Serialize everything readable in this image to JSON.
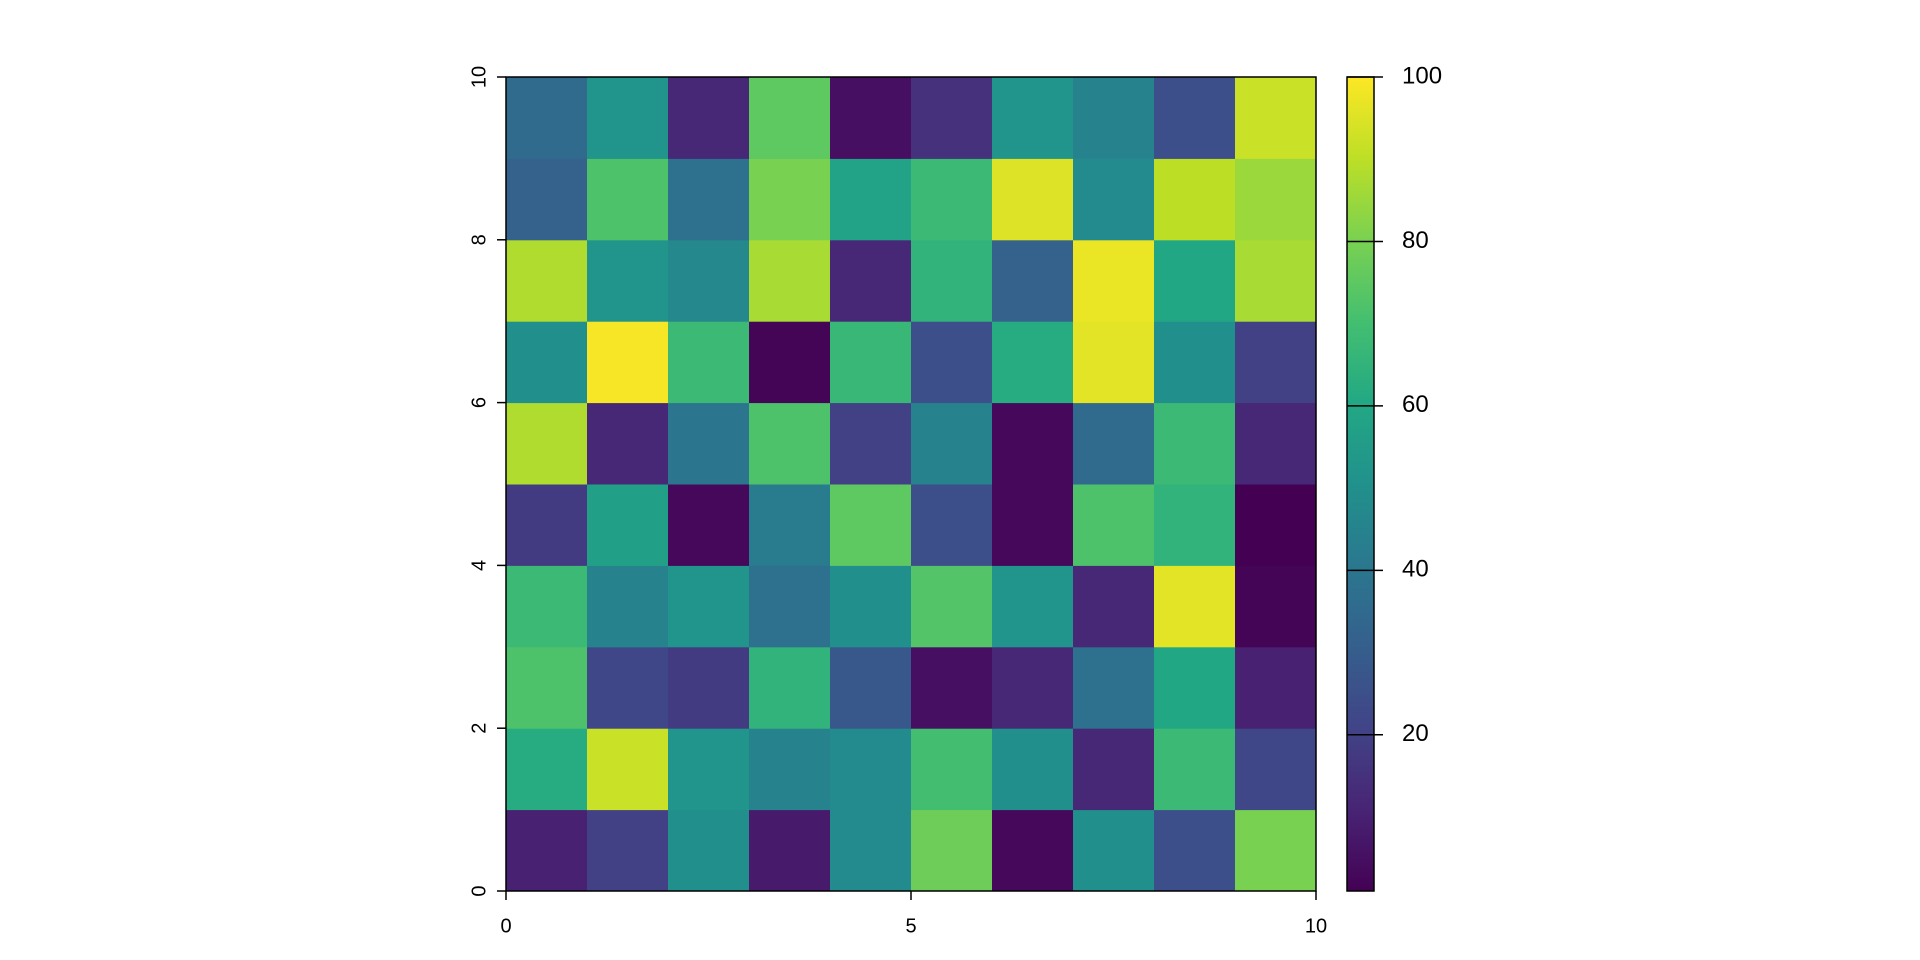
{
  "chart_data": {
    "type": "heatmap",
    "colormap": "viridis",
    "xlim": [
      0,
      10
    ],
    "ylim": [
      0,
      10
    ],
    "xticks": [
      0,
      5,
      10
    ],
    "yticks": [
      0,
      2,
      4,
      6,
      8,
      10
    ],
    "zlim": [
      1,
      100
    ],
    "colorbar_ticks": [
      20,
      40,
      60,
      80,
      100
    ],
    "z": [
      [
        10,
        20,
        50,
        8,
        48,
        78,
        3,
        50,
        25,
        80
      ],
      [
        62,
        92,
        52,
        45,
        48,
        70,
        50,
        12,
        68,
        22
      ],
      [
        72,
        22,
        18,
        65,
        28,
        5,
        12,
        38,
        60,
        10
      ],
      [
        68,
        45,
        52,
        38,
        50,
        73,
        52,
        12,
        96,
        2
      ],
      [
        18,
        57,
        3,
        42,
        75,
        25,
        3,
        72,
        65,
        1
      ],
      [
        88,
        12,
        40,
        72,
        20,
        45,
        3,
        35,
        68,
        12
      ],
      [
        50,
        99,
        68,
        2,
        67,
        25,
        62,
        96,
        50,
        20
      ],
      [
        88,
        52,
        47,
        87,
        12,
        65,
        32,
        97,
        60,
        87
      ],
      [
        32,
        72,
        38,
        80,
        58,
        68,
        95,
        48,
        90,
        85
      ],
      [
        35,
        52,
        12,
        75,
        5,
        15,
        52,
        45,
        25,
        92
      ]
    ]
  }
}
